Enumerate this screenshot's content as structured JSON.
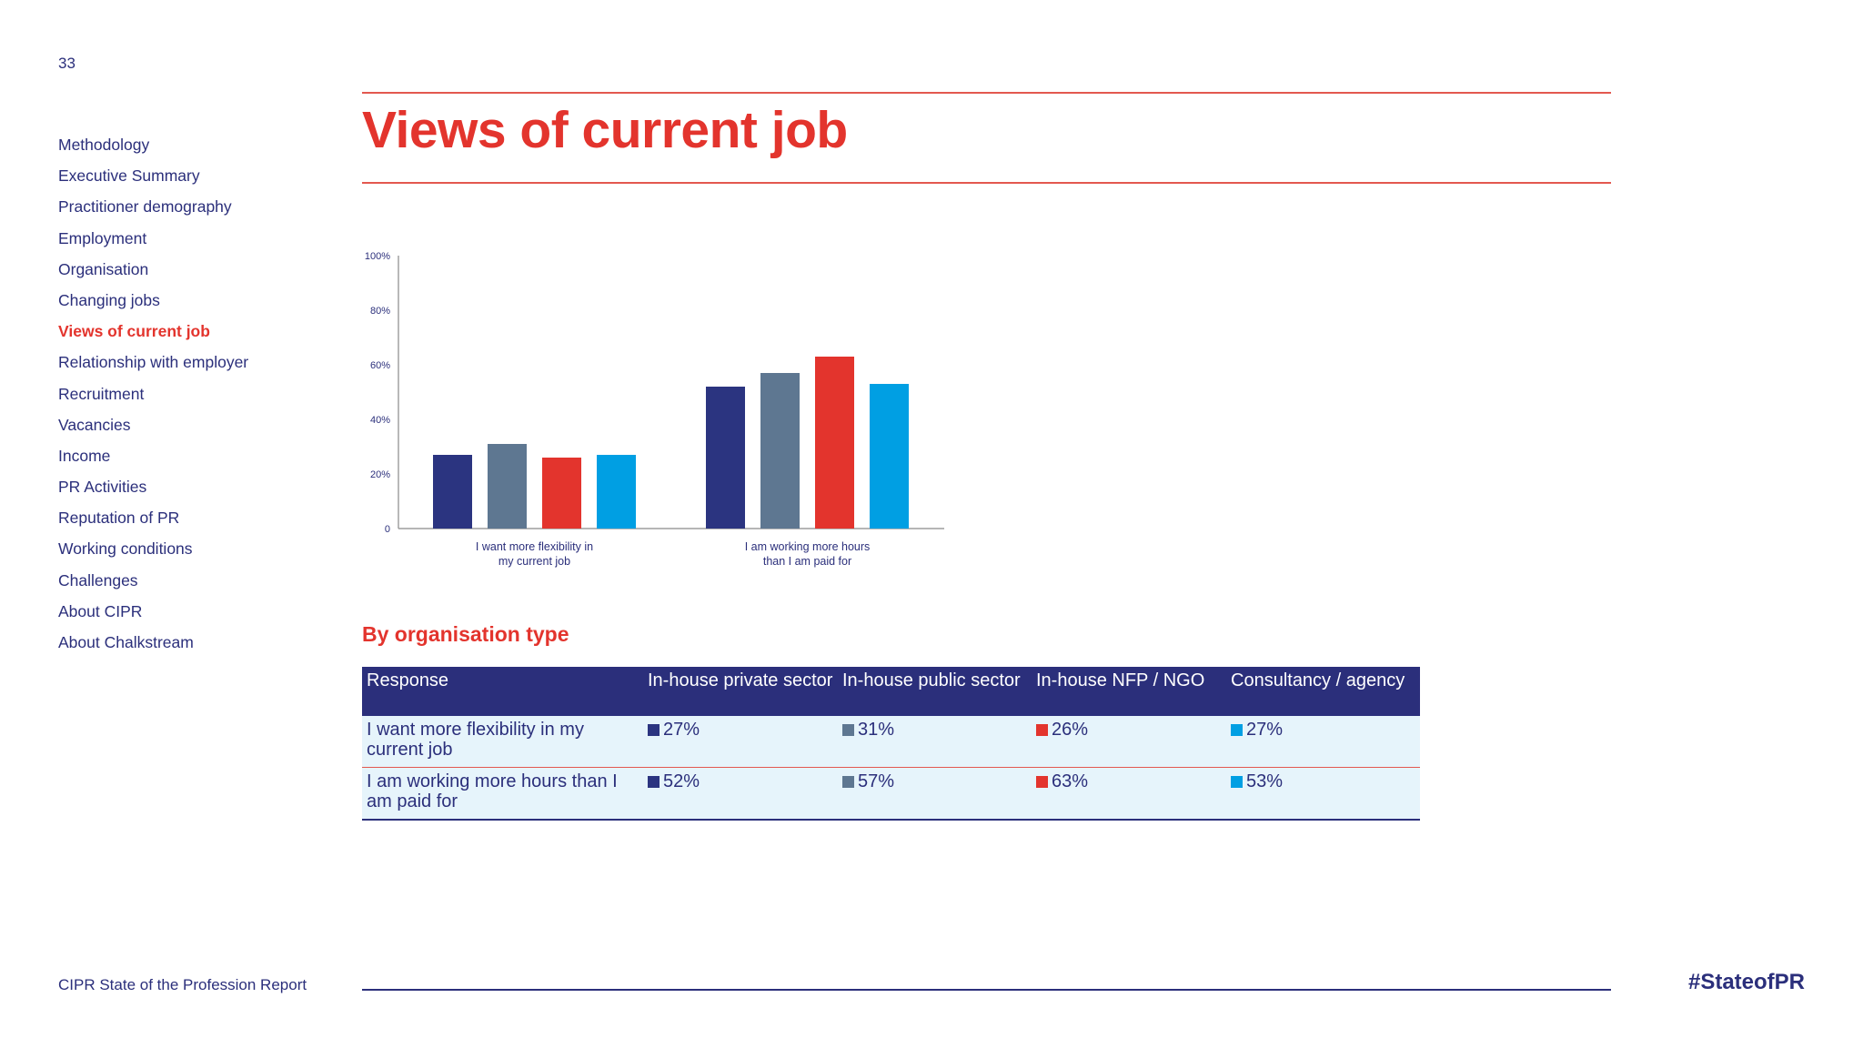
{
  "page_number": "33",
  "sidebar": {
    "items": [
      {
        "label": "Methodology"
      },
      {
        "label": "Executive Summary"
      },
      {
        "label": "Practitioner demography"
      },
      {
        "label": "Employment"
      },
      {
        "label": "Organisation"
      },
      {
        "label": "Changing jobs"
      },
      {
        "label": "Views of current job"
      },
      {
        "label": "Relationship with employer"
      },
      {
        "label": "Recruitment"
      },
      {
        "label": "Vacancies"
      },
      {
        "label": "Income"
      },
      {
        "label": "PR Activities"
      },
      {
        "label": "Reputation of PR"
      },
      {
        "label": "Working conditions"
      },
      {
        "label": "Challenges"
      },
      {
        "label": "About CIPR"
      },
      {
        "label": "About Chalkstream"
      }
    ],
    "active_index": 6
  },
  "title": "Views of current job",
  "chart_data": {
    "type": "bar",
    "categories": [
      [
        "I want more flexibility in",
        "my current job"
      ],
      [
        "I am working more hours",
        "than I am paid for"
      ]
    ],
    "series": [
      {
        "color": "#2b3480",
        "values": [
          27,
          52
        ]
      },
      {
        "color": "#5e7791",
        "values": [
          31,
          57
        ]
      },
      {
        "color": "#e3342d",
        "values": [
          26,
          63
        ]
      },
      {
        "color": "#009fe3",
        "values": [
          27,
          53
        ]
      }
    ],
    "y_ticks": [
      "0",
      "20%",
      "40%",
      "60%",
      "80%",
      "100%"
    ],
    "ylim": [
      0,
      100
    ],
    "grid": false,
    "legend": "none"
  },
  "subtitle": "By organisation type",
  "table": {
    "headers": [
      "Response",
      "In-house private sector",
      "In-house public sector",
      "In-house NFP / NGO",
      "Consultancy / agency"
    ],
    "rows": [
      {
        "response": "I want more flexibility in my current job",
        "values": [
          "27%",
          "31%",
          "26%",
          "27%"
        ]
      },
      {
        "response": "I am working more hours than I am paid for",
        "values": [
          "52%",
          "57%",
          "63%",
          "53%"
        ]
      }
    ],
    "swatch_colors": [
      "#2b3480",
      "#5e7791",
      "#e3342d",
      "#009fe3"
    ]
  },
  "footer": {
    "report_name": "CIPR State of the Profession Report",
    "hashtag": "#StateofPR"
  }
}
